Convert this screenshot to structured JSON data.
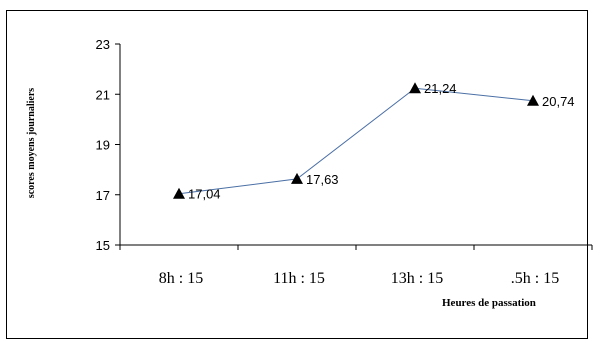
{
  "chart_data": {
    "type": "line",
    "title": "",
    "xlabel": "Heures de passation",
    "ylabel": "scores moyens journaliers",
    "categories": [
      "8h : 15",
      "11h : 15",
      "13h : 15",
      ".5h : 15"
    ],
    "series": [
      {
        "values": [
          17.04,
          17.63,
          21.24,
          20.74
        ]
      }
    ],
    "data_labels": [
      "17,04",
      "17,63",
      "21,24",
      "20,74"
    ],
    "yticks": [
      "15",
      "17",
      "19",
      "21",
      "23"
    ],
    "ylim": [
      15,
      23
    ],
    "grid": false,
    "legend": "none",
    "line_color": "#4a6fa5",
    "marker": "triangle"
  }
}
